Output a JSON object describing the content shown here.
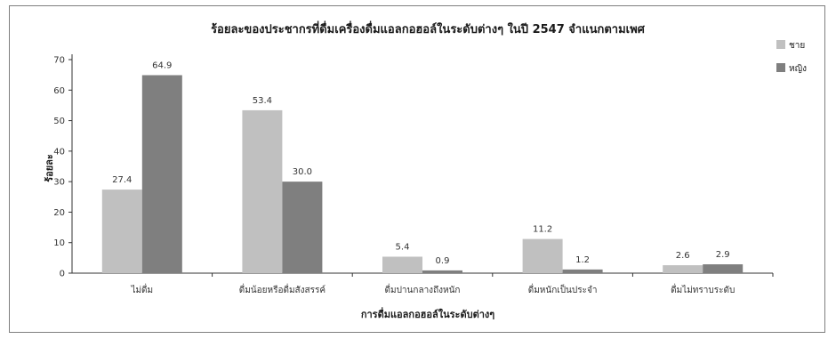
{
  "chart_data": {
    "type": "bar",
    "title": "ร้อยละของประชากรที่ดื่มเครื่องดื่มแอลกอฮอล์ในระดับต่างๆ ในปี 2547 จำแนกตามเพศ",
    "xlabel": "การดื่มแอลกอฮอล์ในระดับต่างๆ",
    "ylabel": "ร้อยละ",
    "ylim": [
      0,
      70
    ],
    "yticks": [
      0,
      10,
      20,
      30,
      40,
      50,
      60,
      70
    ],
    "grid": false,
    "legend_position": "top-right",
    "categories": [
      "ไม่ดื่ม",
      "ดื่มน้อยหรือดื่มสังสรรค์",
      "ดื่มปานกลางถึงหนัก",
      "ดื่มหนักเป็นประจำ",
      "ดื่มไม่ทราบระดับ"
    ],
    "series": [
      {
        "name": "ชาย",
        "color": "#c0c0c0",
        "values": [
          27.4,
          53.4,
          5.4,
          11.2,
          2.6
        ],
        "labels": [
          "27.4",
          "53.4",
          "5.4",
          "11.2",
          "2.6"
        ]
      },
      {
        "name": "หญิง",
        "color": "#7f7f7f",
        "values": [
          64.9,
          30.0,
          0.9,
          1.2,
          2.9
        ],
        "labels": [
          "64.9",
          "30.0",
          "0.9",
          "1.2",
          "2.9"
        ]
      }
    ]
  }
}
